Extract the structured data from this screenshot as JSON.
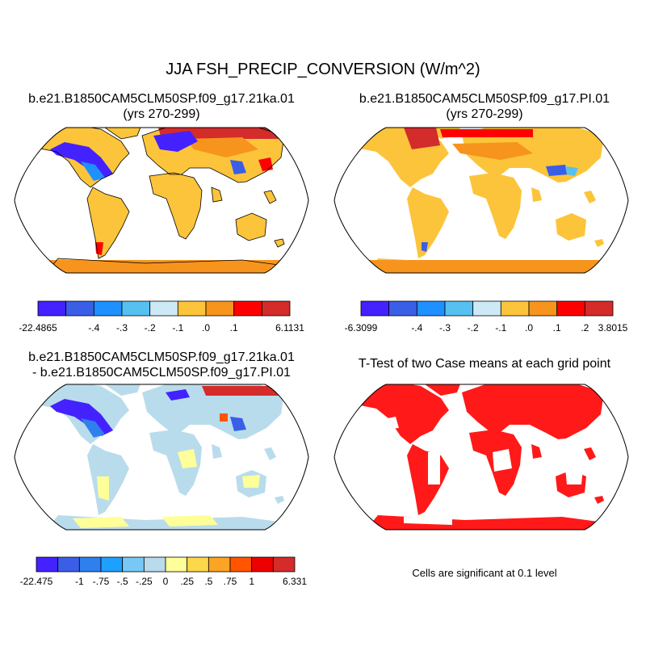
{
  "main_title": "JJA FSH_PRECIP_CONVERSION (W/m^2)",
  "panels": [
    {
      "title_line1": "b.e21.B1850CAM5CLM50SP.f09_g17.21ka.01",
      "title_line2": "(yrs 270-299)"
    },
    {
      "title_line1": "b.e21.B1850CAM5CLM50SP.f09_g17.PI.01",
      "title_line2": "(yrs 270-299)"
    },
    {
      "title_line1": "b.e21.B1850CAM5CLM50SP.f09_g17.21ka.01",
      "title_line2": "- b.e21.B1850CAM5CLM50SP.f09_g17.PI.01"
    },
    {
      "title_line1": "T-Test of two Case means at each grid point"
    }
  ],
  "significance_note": "Cells are significant at 0.1 level",
  "chart_data": [
    {
      "type": "heatmap",
      "projection": "Robinson",
      "title": "b.e21.B1850CAM5CLM50SP.f09_g17.21ka.01 (yrs 270-299)",
      "colorbar": {
        "colors": [
          "#4422ff",
          "#3b5ee6",
          "#1e90ff",
          "#56c0f0",
          "#cde9f5",
          "#fcc43a",
          "#f7941d",
          "#ff0000",
          "#d42b2b"
        ],
        "tick_labels": [
          "-22.4865",
          "-.4",
          "-.3",
          "-.2",
          "-.1",
          ".0",
          ".1",
          "6.1131"
        ],
        "tick_boundaries": [
          0,
          2,
          3,
          4,
          5,
          6,
          7,
          9
        ]
      }
    },
    {
      "type": "heatmap",
      "projection": "Robinson",
      "title": "b.e21.B1850CAM5CLM50SP.f09_g17.PI.01 (yrs 270-299)",
      "colorbar": {
        "colors": [
          "#4422ff",
          "#3b5ee6",
          "#1e90ff",
          "#56c0f0",
          "#cde9f5",
          "#fcc43a",
          "#f7941d",
          "#ff0000",
          "#d42b2b"
        ],
        "tick_labels": [
          "-6.3099",
          "-.4",
          "-.3",
          "-.2",
          "-.1",
          ".0",
          ".1",
          ".2",
          "3.8015"
        ],
        "tick_boundaries": [
          0,
          2,
          3,
          4,
          5,
          6,
          7,
          8,
          9
        ]
      }
    },
    {
      "type": "heatmap",
      "projection": "Robinson",
      "title": "b.e21.B1850CAM5CLM50SP.f09_g17.21ka.01 - b.e21.B1850CAM5CLM50SP.f09_g17.PI.01",
      "colorbar": {
        "colors": [
          "#4422ff",
          "#3b5ee6",
          "#2f80ee",
          "#1ea0ff",
          "#78c8f5",
          "#b9dcec",
          "#ffff99",
          "#fdd84a",
          "#fba425",
          "#ff5500",
          "#ee0000",
          "#d42b2b"
        ],
        "tick_labels": [
          "-22.475",
          "-1",
          "-.75",
          "-.5",
          "-.25",
          "0",
          ".25",
          ".5",
          ".75",
          "1",
          "6.331"
        ],
        "tick_boundaries": [
          0,
          2,
          3,
          4,
          5,
          6,
          7,
          8,
          9,
          10,
          12
        ]
      }
    },
    {
      "type": "heatmap",
      "projection": "Robinson",
      "title": "T-Test of two Case means at each grid point",
      "significance_level": 0.1,
      "significant_color": "#ff0000"
    }
  ]
}
